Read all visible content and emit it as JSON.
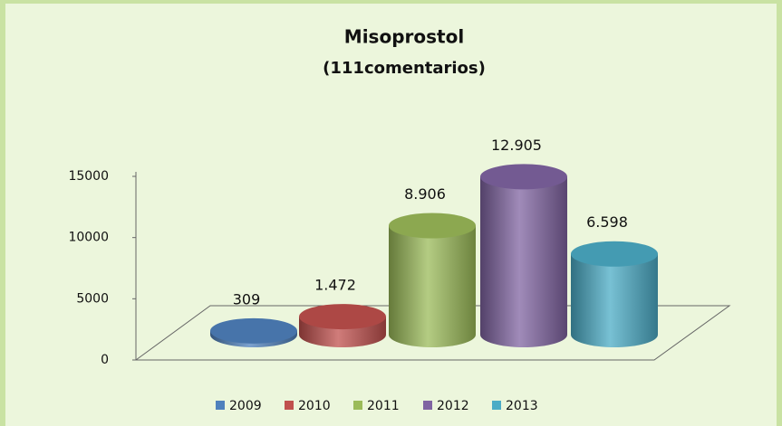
{
  "chart_data": {
    "type": "cylinder",
    "title": "Misoprostol",
    "subtitle": "(111comentarios)",
    "series": [
      {
        "name": "2009",
        "color": "#4f81bd",
        "values": [
          309
        ]
      },
      {
        "name": "2010",
        "color": "#c0504d",
        "values": [
          1472
        ],
        "value_labels": [
          "1.472"
        ]
      },
      {
        "name": "2011",
        "color": "#9bbb59",
        "values": [
          8906
        ],
        "value_labels": [
          "8.906"
        ]
      },
      {
        "name": "2012",
        "color": "#8064a2",
        "values": [
          12905
        ],
        "value_labels": [
          "12.905"
        ]
      },
      {
        "name": "2013",
        "color": "#4bacc6",
        "values": [
          6598
        ],
        "value_labels": [
          "6.598"
        ]
      }
    ],
    "ylim": [
      0,
      15000
    ],
    "yticks": [
      0,
      5000,
      10000,
      15000
    ],
    "legend": "bottom"
  }
}
